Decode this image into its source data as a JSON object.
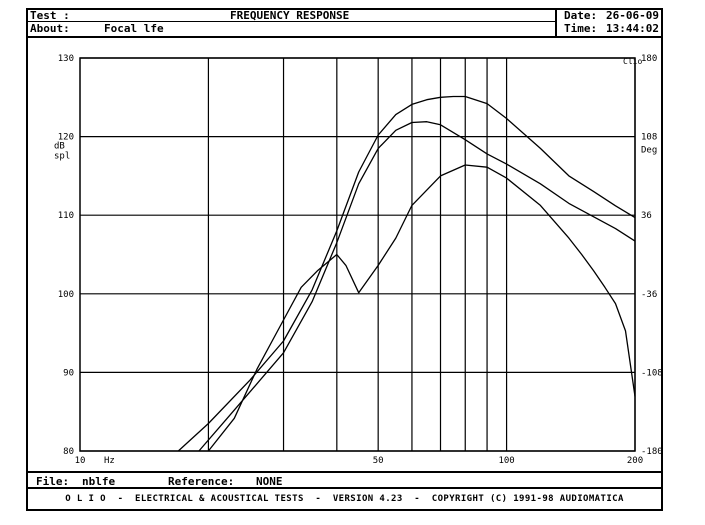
{
  "header": {
    "test_label": "Test :",
    "title": "FREQUENCY RESPONSE",
    "about_label": "About:",
    "about_value": "Focal lfe",
    "date_label": "Date:",
    "date_value": "26-06-09",
    "time_label": "Time:",
    "time_value": "13:44:02"
  },
  "file_bar": {
    "file_label": "File:",
    "file_value": "nblfe",
    "reference_label": "Reference:",
    "reference_value": "NONE"
  },
  "footer": {
    "text": "O L I O  -  ELECTRICAL & ACOUSTICAL TESTS  -  VERSION 4.23  -  COPYRIGHT (C) 1991-98 AUDIOMATICA"
  },
  "chart_data": {
    "type": "line",
    "xscale": "log",
    "xlim": [
      10,
      200
    ],
    "x_ticks": [
      "10",
      "50",
      "100",
      "200"
    ],
    "x_unit": "Hz",
    "ylim": [
      80,
      130
    ],
    "y_ticks": [
      "130",
      "120",
      "110",
      "100",
      "90",
      "80"
    ],
    "ylabel": "dB spl",
    "y2lim": [
      -180,
      180
    ],
    "y2_ticks": [
      "180",
      "108",
      "36",
      "-36",
      "-108",
      "-180"
    ],
    "y2label": "Deg",
    "y2_top_label": "Clio",
    "grid": true,
    "series": [
      {
        "x": [
          17,
          20,
          25,
          30,
          35,
          40,
          45,
          50,
          55,
          60,
          65,
          70,
          75,
          80,
          90,
          100,
          120,
          140,
          160,
          180,
          200
        ],
        "values": [
          80,
          83.5,
          89,
          94,
          100.5,
          108,
          115.5,
          120.2,
          122.8,
          124.1,
          124.7,
          125,
          125.1,
          125.1,
          124.2,
          122.3,
          118.5,
          115,
          113,
          111.2,
          109.7
        ]
      },
      {
        "x": [
          19,
          22,
          25,
          30,
          35,
          40,
          45,
          50,
          55,
          60,
          65,
          70,
          80,
          90,
          100,
          120,
          140,
          160,
          180,
          200
        ],
        "values": [
          80,
          84,
          87.5,
          92.5,
          99,
          106.5,
          114,
          118.5,
          120.8,
          121.8,
          121.9,
          121.5,
          119.6,
          117.8,
          116.5,
          114,
          111.5,
          109.8,
          108.3,
          106.7
        ]
      },
      {
        "x": [
          20,
          23,
          26,
          30,
          33,
          36,
          40,
          42,
          45,
          50,
          55,
          60,
          70,
          80,
          90,
          100,
          120,
          140,
          150,
          160,
          170,
          180,
          190,
          200
        ],
        "values": [
          -180,
          -150,
          -105,
          -60,
          -30,
          -15,
          0,
          -10,
          -35,
          -10,
          15,
          45,
          72,
          82,
          80,
          70,
          45,
          15,
          0,
          -15,
          -30,
          -45,
          -70,
          -130
        ]
      }
    ]
  }
}
